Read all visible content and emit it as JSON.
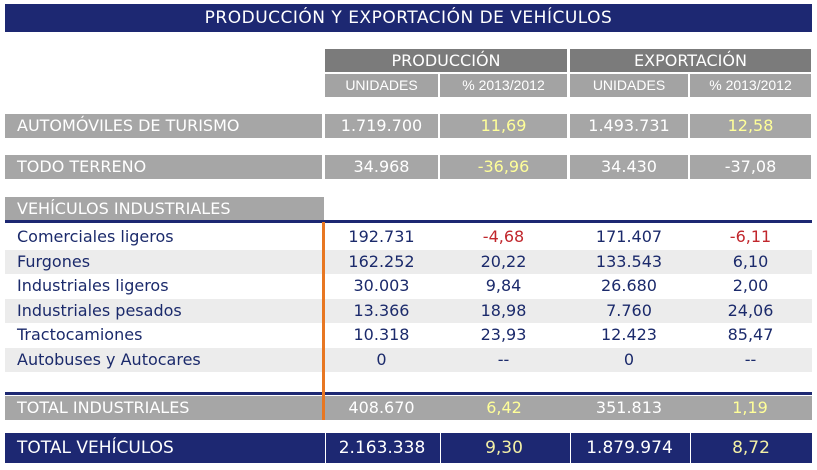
{
  "title": "PRODUCCIÓN Y EXPORTACIÓN DE VEHÍCULOS",
  "headers": {
    "produccion": "PRODUCCIÓN",
    "exportacion": "EXPORTACIÓN",
    "unidades": "UNIDADES",
    "pct": "% 2013/2012"
  },
  "automoviles": {
    "label": "AUTOMÓVILES DE TURISMO",
    "prod_units": "1.719.700",
    "prod_pct": "11,69",
    "exp_units": "1.493.731",
    "exp_pct": "12,58"
  },
  "todo_terreno": {
    "label": "TODO TERRENO",
    "prod_units": "34.968",
    "prod_pct": "-36,96",
    "exp_units": "34.430",
    "exp_pct": "-37,08"
  },
  "industriales_header": "VEHÍCULOS INDUSTRIALES",
  "rows": [
    {
      "label": "Comerciales ligeros",
      "prod_units": "192.731",
      "prod_pct": "-4,68",
      "exp_units": "171.407",
      "exp_pct": "-6,11"
    },
    {
      "label": "Furgones",
      "prod_units": "162.252",
      "prod_pct": "20,22",
      "exp_units": "133.543",
      "exp_pct": "6,10"
    },
    {
      "label": "Industriales ligeros",
      "prod_units": "30.003",
      "prod_pct": "9,84",
      "exp_units": "26.680",
      "exp_pct": "2,00"
    },
    {
      "label": "Industriales pesados",
      "prod_units": "13.366",
      "prod_pct": "18,98",
      "exp_units": "7.760",
      "exp_pct": "24,06"
    },
    {
      "label": "Tractocamiones",
      "prod_units": "10.318",
      "prod_pct": "23,93",
      "exp_units": "12.423",
      "exp_pct": "85,47"
    },
    {
      "label": "Autobuses y Autocares",
      "prod_units": "0",
      "prod_pct": "--",
      "exp_units": "0",
      "exp_pct": "--"
    }
  ],
  "total_industriales": {
    "label": "TOTAL INDUSTRIALES",
    "prod_units": "408.670",
    "prod_pct": "6,42",
    "exp_units": "351.813",
    "exp_pct": "1,19"
  },
  "total_vehiculos": {
    "label": "TOTAL VEHÍCULOS",
    "prod_units": "2.163.338",
    "prod_pct": "9,30",
    "exp_units": "1.879.974",
    "exp_pct": "8,72"
  },
  "colors": {
    "navy": "#1d2872",
    "gray": "#a6a6a6",
    "yellow": "#ffff99",
    "red": "#c1272d",
    "orange": "#e87722"
  }
}
